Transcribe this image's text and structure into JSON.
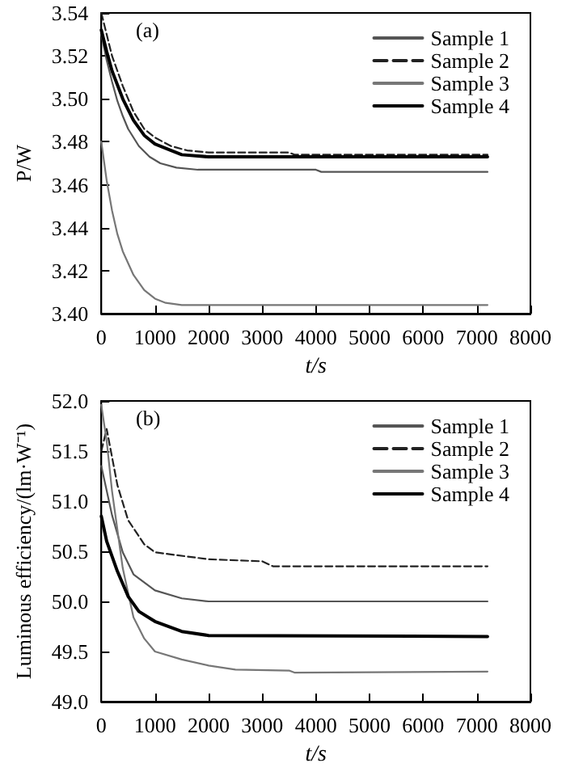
{
  "chart_data": [
    {
      "type": "line",
      "xlabel": "t/s",
      "ylabel": "P/W",
      "annotations": [
        "(a)"
      ],
      "xlim": [
        0,
        8000
      ],
      "xticks": [
        0,
        1000,
        2000,
        3000,
        4000,
        5000,
        6000,
        7000,
        8000
      ],
      "ylim": [
        3.4,
        3.54
      ],
      "yticks": [
        {
          "value": 3.4,
          "label": "3.40"
        },
        3.42,
        3.44,
        3.46,
        3.48,
        {
          "value": 3.5,
          "label": "3.50"
        },
        3.52,
        3.54
      ],
      "grid": false,
      "legend": "top right",
      "marker": "none",
      "series": [
        {
          "name": "Sample 1",
          "color": "#555555",
          "x": [
            0,
            100,
            200,
            300,
            400,
            500,
            700,
            900,
            1100,
            1400,
            1800,
            4000,
            4100,
            7200
          ],
          "values": [
            3.53,
            3.518,
            3.508,
            3.499,
            3.492,
            3.486,
            3.478,
            3.473,
            3.47,
            3.468,
            3.467,
            3.467,
            3.466,
            3.466
          ]
        },
        {
          "name": "Sample 2",
          "color": "#222222",
          "line_style": "dashed",
          "x": [
            0,
            100,
            200,
            400,
            600,
            800,
            1000,
            1300,
            1600,
            2000,
            3500,
            3600,
            7200
          ],
          "values": [
            3.54,
            3.53,
            3.52,
            3.506,
            3.494,
            3.486,
            3.482,
            3.478,
            3.476,
            3.475,
            3.475,
            3.474,
            3.474
          ]
        },
        {
          "name": "Sample 3",
          "color": "#777777",
          "x": [
            0,
            100,
            200,
            300,
            400,
            600,
            800,
            1000,
            1200,
            1500,
            7200
          ],
          "values": [
            3.48,
            3.462,
            3.448,
            3.437,
            3.429,
            3.418,
            3.411,
            3.407,
            3.405,
            3.404,
            3.404
          ]
        },
        {
          "name": "Sample 4",
          "color": "#000000",
          "x": [
            0,
            100,
            200,
            400,
            600,
            800,
            1000,
            1300,
            1500,
            2000,
            7200
          ],
          "values": [
            3.532,
            3.522,
            3.513,
            3.5,
            3.49,
            3.483,
            3.479,
            3.476,
            3.474,
            3.473,
            3.473
          ]
        }
      ]
    },
    {
      "type": "line",
      "xlabel": "t/s",
      "ylabel": "Luminous efficiency/(lm·W⁻¹)",
      "annotations": [
        "(b)"
      ],
      "xlim": [
        0,
        8000
      ],
      "xticks": [
        0,
        1000,
        2000,
        3000,
        4000,
        5000,
        6000,
        7000,
        8000
      ],
      "ylim": [
        49.0,
        52.0
      ],
      "yticks": [
        {
          "value": 49.0,
          "label": "49.0"
        },
        49.5,
        {
          "value": 50.0,
          "label": "50.0"
        },
        50.5,
        {
          "value": 51.0,
          "label": "51.0"
        },
        51.5,
        {
          "value": 52.0,
          "label": "52.0"
        }
      ],
      "grid": false,
      "legend": "top right",
      "marker": "none",
      "series": [
        {
          "name": "Sample 1",
          "color": "#555555",
          "x": [
            0,
            200,
            400,
            600,
            1000,
            1500,
            2000,
            7200
          ],
          "values": [
            51.35,
            50.86,
            50.49,
            50.27,
            50.11,
            50.03,
            50.0,
            50.0
          ]
        },
        {
          "name": "Sample 2",
          "color": "#222222",
          "line_style": "dashed",
          "x": [
            0,
            100,
            300,
            500,
            800,
            1000,
            2000,
            3000,
            3200,
            7200
          ],
          "values": [
            51.5,
            51.72,
            51.16,
            50.81,
            50.57,
            50.49,
            50.42,
            50.4,
            50.35,
            50.35
          ]
        },
        {
          "name": "Sample 3",
          "color": "#777777",
          "x": [
            0,
            100,
            200,
            400,
            600,
            800,
            1000,
            1500,
            2000,
            2500,
            3500,
            3600,
            7200
          ],
          "values": [
            51.96,
            51.6,
            51.1,
            50.33,
            49.84,
            49.63,
            49.5,
            49.42,
            49.36,
            49.32,
            49.31,
            49.29,
            49.3
          ]
        },
        {
          "name": "Sample 4",
          "color": "#000000",
          "x": [
            0,
            100,
            300,
            500,
            700,
            1000,
            1500,
            2000,
            7200
          ],
          "values": [
            50.85,
            50.6,
            50.3,
            50.05,
            49.9,
            49.8,
            49.7,
            49.66,
            49.65
          ]
        }
      ]
    }
  ]
}
